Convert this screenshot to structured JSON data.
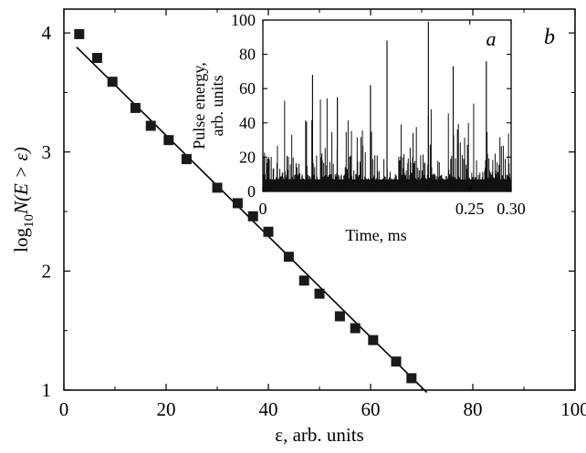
{
  "chart_data": [
    {
      "type": "scatter",
      "panel_label": "b",
      "xlabel": "ε, arb. units",
      "ylabel_parts": {
        "log": "log",
        "sub": "10",
        "rest": "N(E > ε)"
      },
      "xlim": [
        0,
        100
      ],
      "ylim": [
        1,
        4.2
      ],
      "xticks": [
        0,
        20,
        40,
        60,
        80,
        100
      ],
      "yticks": [
        1,
        2,
        3,
        4
      ],
      "grid": false,
      "series": [
        {
          "marker": "square",
          "points": [
            [
              3,
              3.99
            ],
            [
              6.5,
              3.79
            ],
            [
              9.5,
              3.59
            ],
            [
              14,
              3.37
            ],
            [
              17,
              3.22
            ],
            [
              20.5,
              3.1
            ],
            [
              24,
              2.94
            ],
            [
              30,
              2.7
            ],
            [
              34,
              2.57
            ],
            [
              37,
              2.46
            ],
            [
              40,
              2.33
            ],
            [
              44,
              2.12
            ],
            [
              47,
              1.92
            ],
            [
              50,
              1.81
            ],
            [
              54,
              1.62
            ],
            [
              57,
              1.52
            ],
            [
              60.5,
              1.42
            ],
            [
              65,
              1.24
            ],
            [
              68,
              1.1
            ]
          ]
        },
        {
          "marker": "line",
          "points": [
            [
              2.5,
              3.88
            ],
            [
              71,
              0.98
            ]
          ]
        }
      ],
      "inset": {
        "type": "bar",
        "panel_label": "a",
        "xlabel": "Time, ms",
        "ylabel_lines": [
          "Pulse energy,",
          "arb. units"
        ],
        "xlim": [
          0,
          0.3
        ],
        "ylim": [
          0,
          100
        ],
        "xticks": [
          0,
          0.25,
          0.3
        ],
        "xtick_labels": [
          "0",
          "0.25",
          "0.30"
        ],
        "yticks": [
          0,
          20,
          40,
          60,
          80,
          100
        ],
        "notable_peaks": [
          {
            "x": 0.2,
            "y": 99
          },
          {
            "x": 0.15,
            "y": 88
          },
          {
            "x": 0.27,
            "y": 76
          },
          {
            "x": 0.23,
            "y": 73
          },
          {
            "x": 0.13,
            "y": 62
          },
          {
            "x": 0.06,
            "y": 68
          },
          {
            "x": 0.09,
            "y": 55
          }
        ]
      }
    }
  ]
}
